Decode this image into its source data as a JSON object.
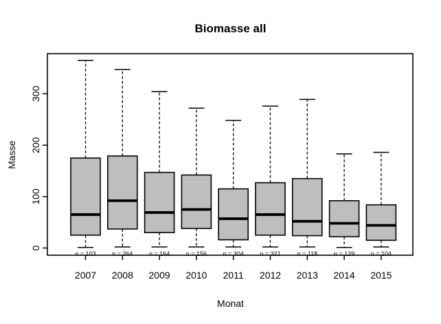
{
  "colors": {
    "box_fill": "#bebebe",
    "stroke": "#000000",
    "background": "#ffffff"
  },
  "chart_data": {
    "type": "boxplot",
    "title": "Biomasse all",
    "xlabel": "Monat",
    "ylabel": "Masse",
    "categories": [
      "2007",
      "2008",
      "2009",
      "2010",
      "2011",
      "2012",
      "2013",
      "2014",
      "2015"
    ],
    "yticks": [
      0,
      100,
      200,
      300
    ],
    "ylim": [
      -14,
      378
    ],
    "grid": false,
    "legend": "none",
    "series": [
      {
        "category": "2007",
        "n": 103,
        "count_label": "n = 103",
        "whisker_low": 1,
        "q1": 25,
        "median": 65,
        "q3": 175,
        "whisker_high": 365
      },
      {
        "category": "2008",
        "n": 264,
        "count_label": "n = 264",
        "whisker_low": 2,
        "q1": 37,
        "median": 92,
        "q3": 179,
        "whisker_high": 347
      },
      {
        "category": "2009",
        "n": 164,
        "count_label": "n = 164",
        "whisker_low": 2,
        "q1": 30,
        "median": 69,
        "q3": 147,
        "whisker_high": 304
      },
      {
        "category": "2010",
        "n": 156,
        "count_label": "n = 156",
        "whisker_low": 2,
        "q1": 38,
        "median": 75,
        "q3": 142,
        "whisker_high": 272
      },
      {
        "category": "2011",
        "n": 304,
        "count_label": "n = 304",
        "whisker_low": 2,
        "q1": 16,
        "median": 57,
        "q3": 115,
        "whisker_high": 248
      },
      {
        "category": "2012",
        "n": 321,
        "count_label": "n = 321",
        "whisker_low": 2,
        "q1": 25,
        "median": 65,
        "q3": 127,
        "whisker_high": 276
      },
      {
        "category": "2013",
        "n": 118,
        "count_label": "n = 118",
        "whisker_low": 2,
        "q1": 24,
        "median": 52,
        "q3": 135,
        "whisker_high": 289
      },
      {
        "category": "2014",
        "n": 129,
        "count_label": "n = 129",
        "whisker_low": 1,
        "q1": 22,
        "median": 48,
        "q3": 92,
        "whisker_high": 183
      },
      {
        "category": "2015",
        "n": 104,
        "count_label": "n = 104",
        "whisker_low": 2,
        "q1": 15,
        "median": 44,
        "q3": 84,
        "whisker_high": 186
      }
    ]
  }
}
